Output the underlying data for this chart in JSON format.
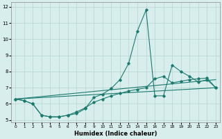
{
  "xlabel": "Humidex (Indice chaleur)",
  "xlim": [
    -0.5,
    23.5
  ],
  "ylim": [
    4.85,
    12.3
  ],
  "yticks": [
    5,
    6,
    7,
    8,
    9,
    10,
    11,
    12
  ],
  "xticks": [
    0,
    1,
    2,
    3,
    4,
    5,
    6,
    7,
    8,
    9,
    10,
    11,
    12,
    13,
    14,
    15,
    16,
    17,
    18,
    19,
    20,
    21,
    22,
    23
  ],
  "bg_color": "#d8eeed",
  "line_color": "#1a7a6e",
  "grid_color": "#b5d5d0",
  "lines": [
    {
      "x": [
        0,
        1,
        2,
        3,
        4,
        5,
        6,
        7,
        8,
        9,
        10,
        11,
        12,
        13,
        14,
        15,
        16,
        17,
        18,
        19,
        20,
        21,
        22,
        23
      ],
      "y": [
        6.3,
        6.2,
        6.0,
        5.3,
        5.2,
        5.2,
        5.3,
        5.4,
        5.7,
        6.4,
        6.6,
        6.95,
        7.5,
        8.5,
        10.5,
        11.8,
        6.5,
        6.5,
        8.4,
        8.0,
        7.7,
        7.35,
        7.5,
        7.0
      ],
      "marker": true
    },
    {
      "x": [
        0,
        1,
        2,
        3,
        4,
        5,
        6,
        7,
        8,
        9,
        10,
        11,
        12,
        13,
        14,
        15,
        16,
        17,
        18,
        19,
        20,
        21,
        22,
        23
      ],
      "y": [
        6.3,
        6.2,
        6.0,
        5.3,
        5.2,
        5.2,
        5.3,
        5.5,
        5.75,
        6.1,
        6.3,
        6.5,
        6.65,
        6.8,
        6.9,
        7.0,
        7.55,
        7.7,
        7.3,
        7.4,
        7.5,
        7.55,
        7.6,
        7.0
      ],
      "marker": true
    },
    {
      "x": [
        0,
        23
      ],
      "y": [
        6.3,
        7.0
      ],
      "marker": false
    },
    {
      "x": [
        0,
        23
      ],
      "y": [
        6.3,
        7.5
      ],
      "marker": false
    }
  ]
}
